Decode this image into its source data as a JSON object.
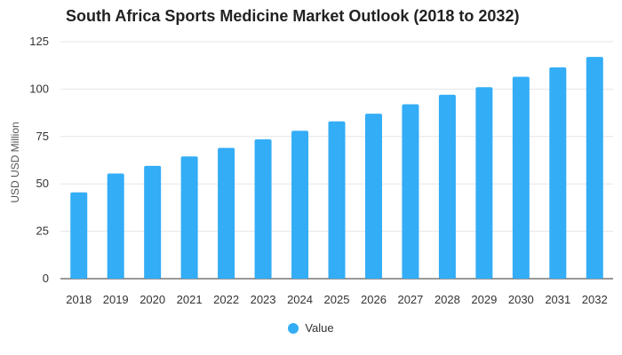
{
  "chart_data": {
    "type": "bar",
    "title": "South Africa Sports Medicine Market Outlook (2018 to 2032)",
    "xlabel": "",
    "ylabel": "USD USD Million",
    "categories": [
      "2018",
      "2019",
      "2020",
      "2021",
      "2022",
      "2023",
      "2024",
      "2025",
      "2026",
      "2027",
      "2028",
      "2029",
      "2030",
      "2031",
      "2032"
    ],
    "series": [
      {
        "name": "Value",
        "values": [
          45.5,
          55.5,
          59.5,
          64.5,
          69,
          73.5,
          78,
          83,
          87,
          92,
          97,
          101,
          106.5,
          111.5,
          117
        ]
      }
    ],
    "ylim": [
      0,
      125
    ],
    "yticks": [
      0,
      25,
      50,
      75,
      100,
      125
    ],
    "grid": true,
    "legend_position": "bottom-center",
    "colors": {
      "bar": "#33adf6",
      "grid": "#e6e6e6",
      "axis": "#333333"
    }
  }
}
